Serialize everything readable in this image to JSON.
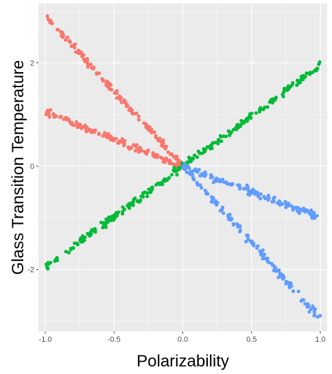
{
  "chart_data": {
    "type": "scatter",
    "title": "",
    "xlabel": "Polarizability",
    "ylabel": "Glass Transition Temperature",
    "xlim": [
      -1.05,
      1.05
    ],
    "ylim": [
      -3.2,
      3.15
    ],
    "xticks": [
      -1.0,
      -0.5,
      0.0,
      0.5,
      1.0
    ],
    "xtick_labels": [
      "-1.0",
      "-0.5",
      "0.0",
      "0.5",
      "1.0"
    ],
    "yticks": [
      -2,
      0,
      2
    ],
    "ytick_labels": [
      "-2",
      "0",
      "2"
    ],
    "grid": true,
    "legend": "none",
    "panel_background": "#ebebeb",
    "grid_color": "#ffffff",
    "series": [
      {
        "color": "#f8766d",
        "segments": [
          {
            "x_from": -1.0,
            "x_to": 0.0,
            "y_from": 2.9,
            "y_to": 0.0,
            "n": 140,
            "noise": 0.08
          },
          {
            "x_from": -1.0,
            "x_to": 0.0,
            "y_from": 1.05,
            "y_to": 0.0,
            "n": 140,
            "noise": 0.07
          }
        ]
      },
      {
        "color": "#00ba38",
        "segments": [
          {
            "x_from": -1.0,
            "x_to": 1.0,
            "y_from": -1.95,
            "y_to": 1.95,
            "n": 280,
            "noise": 0.07
          }
        ]
      },
      {
        "color": "#619cff",
        "segments": [
          {
            "x_from": 0.0,
            "x_to": 1.0,
            "y_from": 0.0,
            "y_to": -2.95,
            "n": 140,
            "noise": 0.08
          },
          {
            "x_from": 0.0,
            "x_to": 1.0,
            "y_from": 0.0,
            "y_to": -1.0,
            "n": 140,
            "noise": 0.07
          }
        ]
      }
    ]
  }
}
